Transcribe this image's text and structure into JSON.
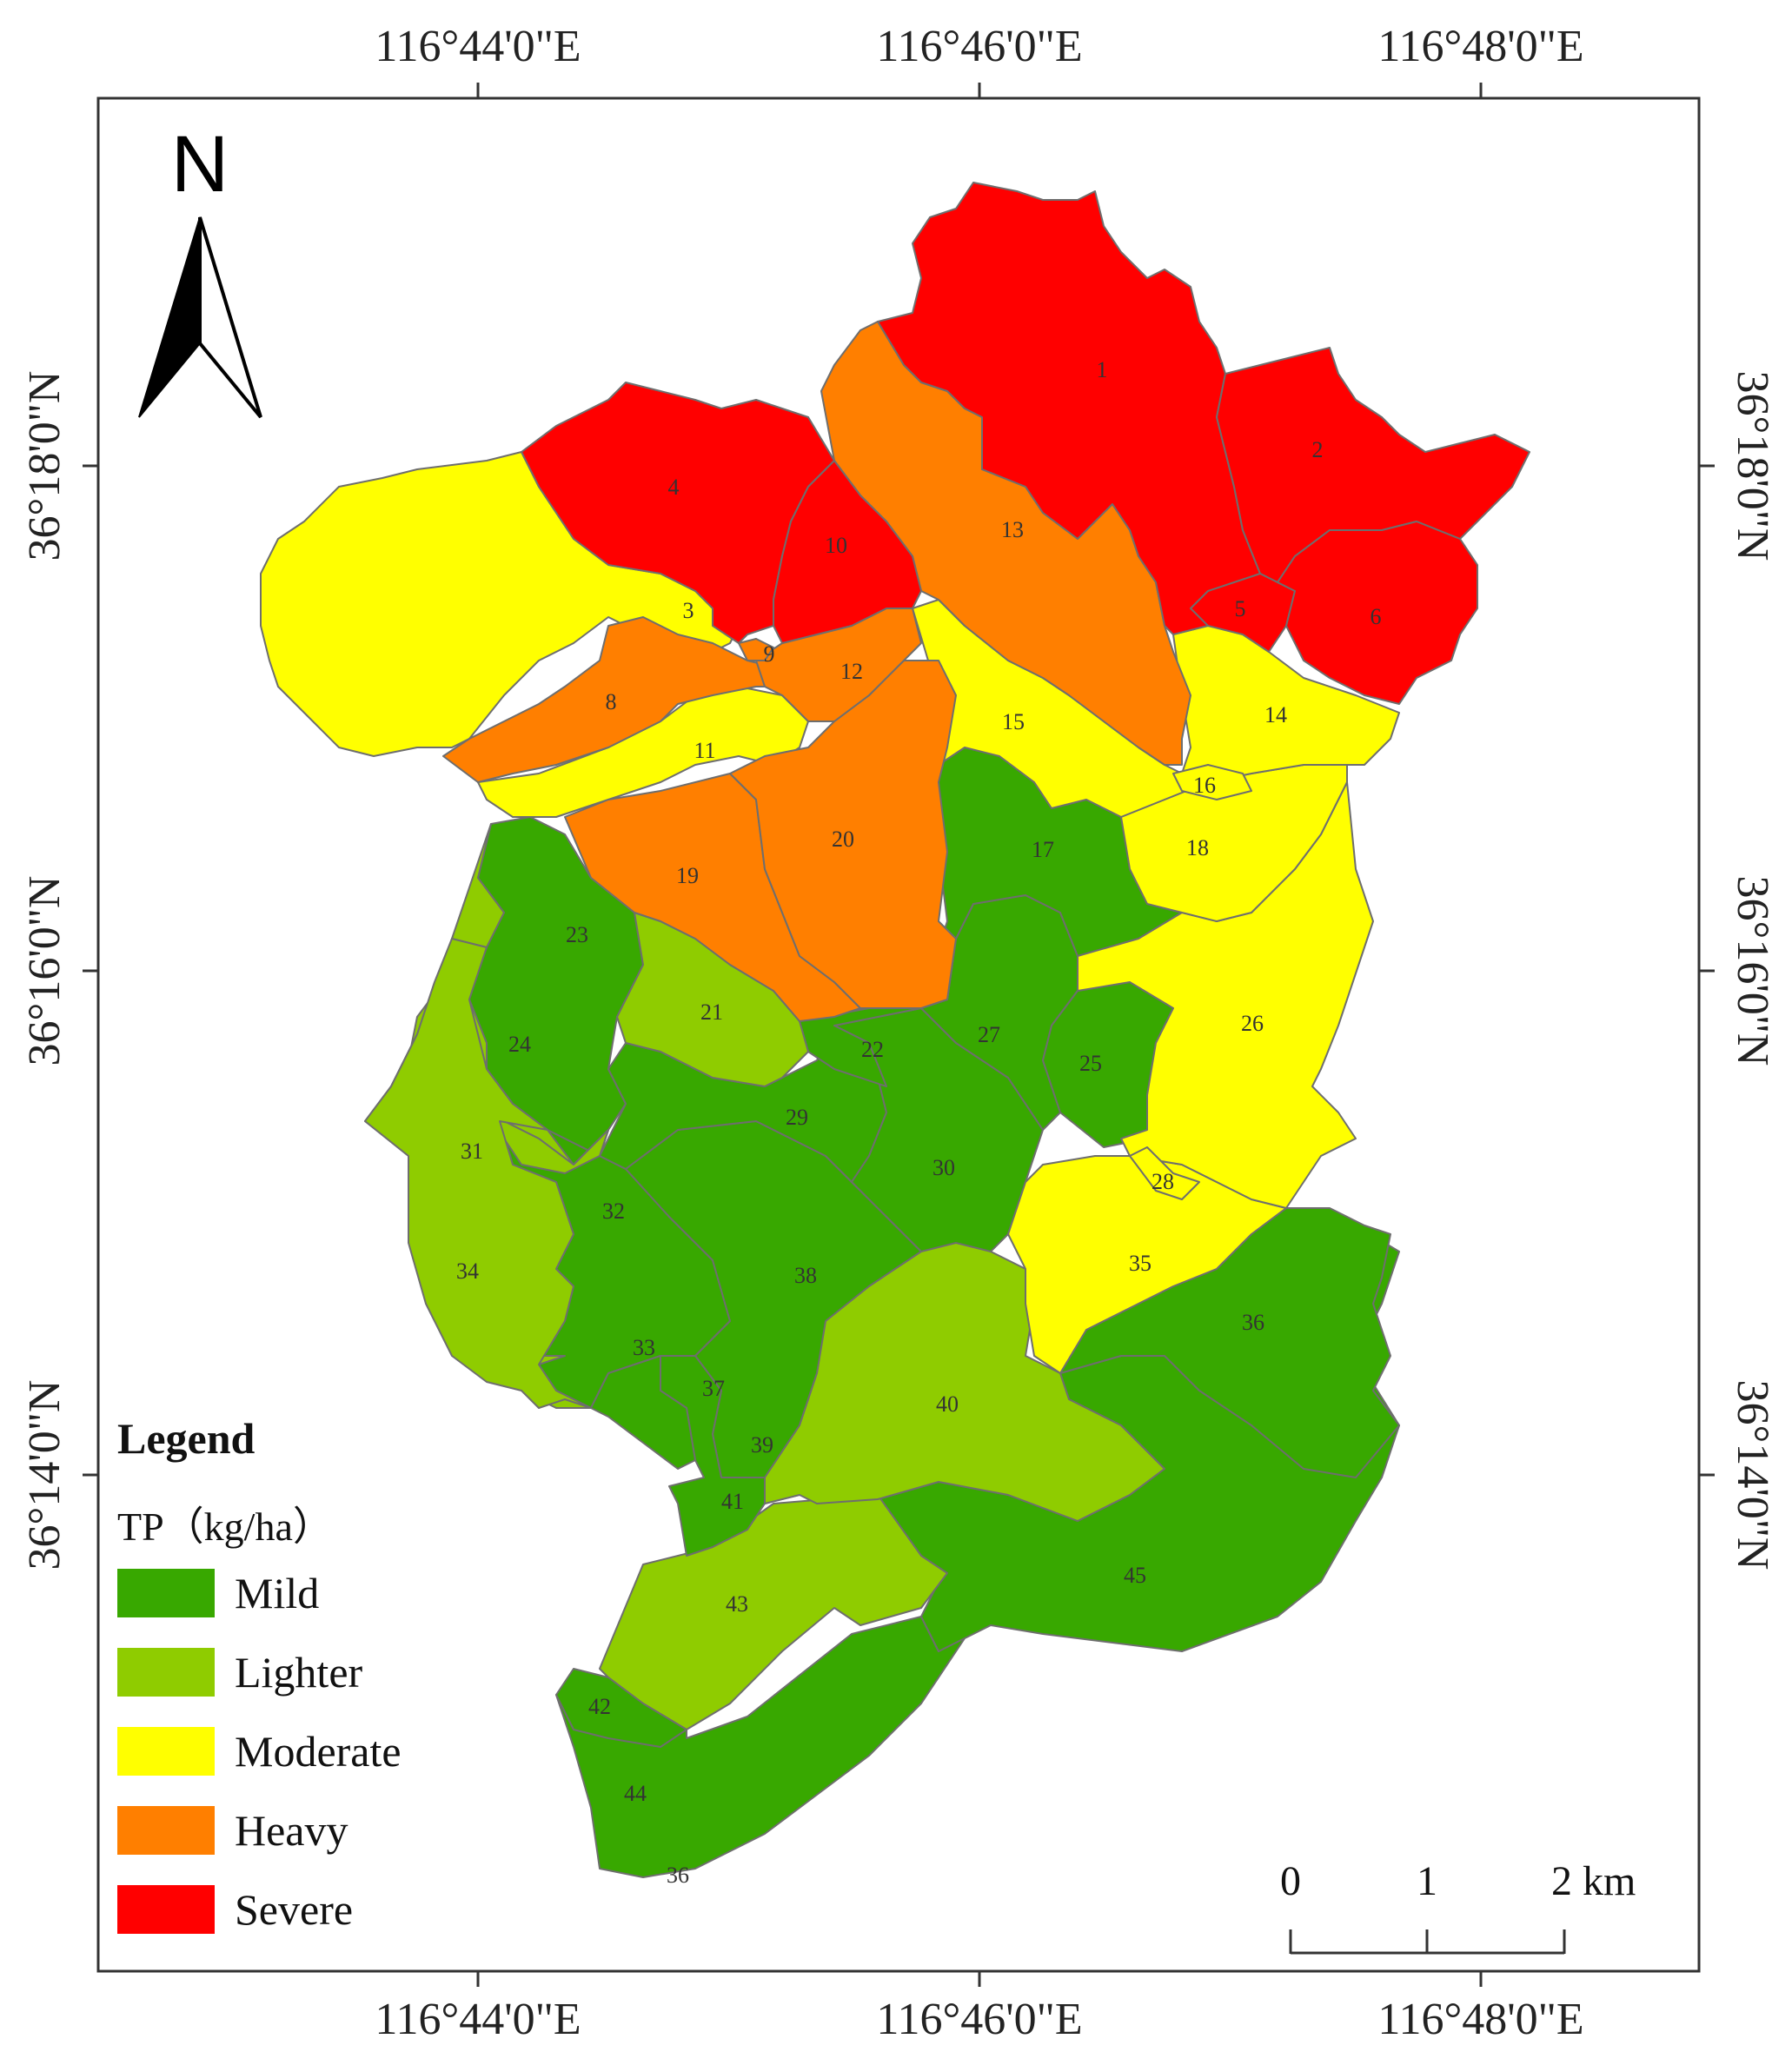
{
  "colors": {
    "Severe": "#ff0000",
    "Heavy": "#ff7f00",
    "Moderate": "#ffff00",
    "Lighter": "#8fcc00",
    "Mild": "#38a800",
    "boundary": "#6e6e6e"
  },
  "axes": {
    "top_lon": [
      "116°44'0\"E",
      "116°46'0\"E",
      "116°48'0\"E"
    ],
    "bottom_lon": [
      "116°44'0\"E",
      "116°46'0\"E",
      "116°48'0\"E"
    ],
    "left_lat": [
      "36°18'0\"N",
      "36°16'0\"N",
      "36°14'0\"N"
    ],
    "right_lat": [
      "36°18'0\"N",
      "36°16'0\"N",
      "36°14'0\"N"
    ]
  },
  "north_arrow": {
    "label": "N",
    "icon": "north-arrow-icon"
  },
  "legend": {
    "title": "Legend",
    "subtitle": "TP（kg/ha）",
    "items": [
      {
        "label": "Mild",
        "class": "Mild"
      },
      {
        "label": "Lighter",
        "class": "Lighter"
      },
      {
        "label": "Moderate",
        "class": "Moderate"
      },
      {
        "label": "Heavy",
        "class": "Heavy"
      },
      {
        "label": "Severe",
        "class": "Severe"
      }
    ]
  },
  "scale_bar": {
    "labels": [
      "0",
      "1",
      "2 km"
    ]
  },
  "subbasins": [
    {
      "id": "1",
      "class": "Severe"
    },
    {
      "id": "2",
      "class": "Severe"
    },
    {
      "id": "3",
      "class": "Moderate"
    },
    {
      "id": "4",
      "class": "Severe"
    },
    {
      "id": "5",
      "class": "Severe"
    },
    {
      "id": "6",
      "class": "Severe"
    },
    {
      "id": "8",
      "class": "Heavy"
    },
    {
      "id": "9",
      "class": "Heavy"
    },
    {
      "id": "10",
      "class": "Severe"
    },
    {
      "id": "11",
      "class": "Moderate"
    },
    {
      "id": "12",
      "class": "Heavy"
    },
    {
      "id": "13",
      "class": "Heavy"
    },
    {
      "id": "14",
      "class": "Moderate"
    },
    {
      "id": "15",
      "class": "Moderate"
    },
    {
      "id": "16",
      "class": "Moderate"
    },
    {
      "id": "17",
      "class": "Mild"
    },
    {
      "id": "18",
      "class": "Moderate"
    },
    {
      "id": "19",
      "class": "Heavy"
    },
    {
      "id": "20",
      "class": "Heavy"
    },
    {
      "id": "21",
      "class": "Lighter"
    },
    {
      "id": "22",
      "class": "Mild"
    },
    {
      "id": "23",
      "class": "Mild"
    },
    {
      "id": "24",
      "class": "Lighter"
    },
    {
      "id": "25",
      "class": "Mild"
    },
    {
      "id": "26",
      "class": "Moderate"
    },
    {
      "id": "27",
      "class": "Mild"
    },
    {
      "id": "28",
      "class": "Moderate"
    },
    {
      "id": "29",
      "class": "Mild"
    },
    {
      "id": "30",
      "class": "Mild"
    },
    {
      "id": "31",
      "class": "Lighter"
    },
    {
      "id": "32",
      "class": "Mild"
    },
    {
      "id": "33",
      "class": "Mild"
    },
    {
      "id": "34",
      "class": "Lighter"
    },
    {
      "id": "35",
      "class": "Moderate"
    },
    {
      "id": "36",
      "class": "Mild"
    },
    {
      "id": "37",
      "class": "Mild"
    },
    {
      "id": "38",
      "class": "Mild"
    },
    {
      "id": "39",
      "class": "Mild"
    },
    {
      "id": "40",
      "class": "Lighter"
    },
    {
      "id": "41",
      "class": "Mild"
    },
    {
      "id": "42",
      "class": "Mild"
    },
    {
      "id": "43",
      "class": "Lighter"
    },
    {
      "id": "44",
      "class": "Mild"
    },
    {
      "id": "45",
      "class": "Mild"
    },
    {
      "id": "36",
      "class": "Mild"
    }
  ]
}
